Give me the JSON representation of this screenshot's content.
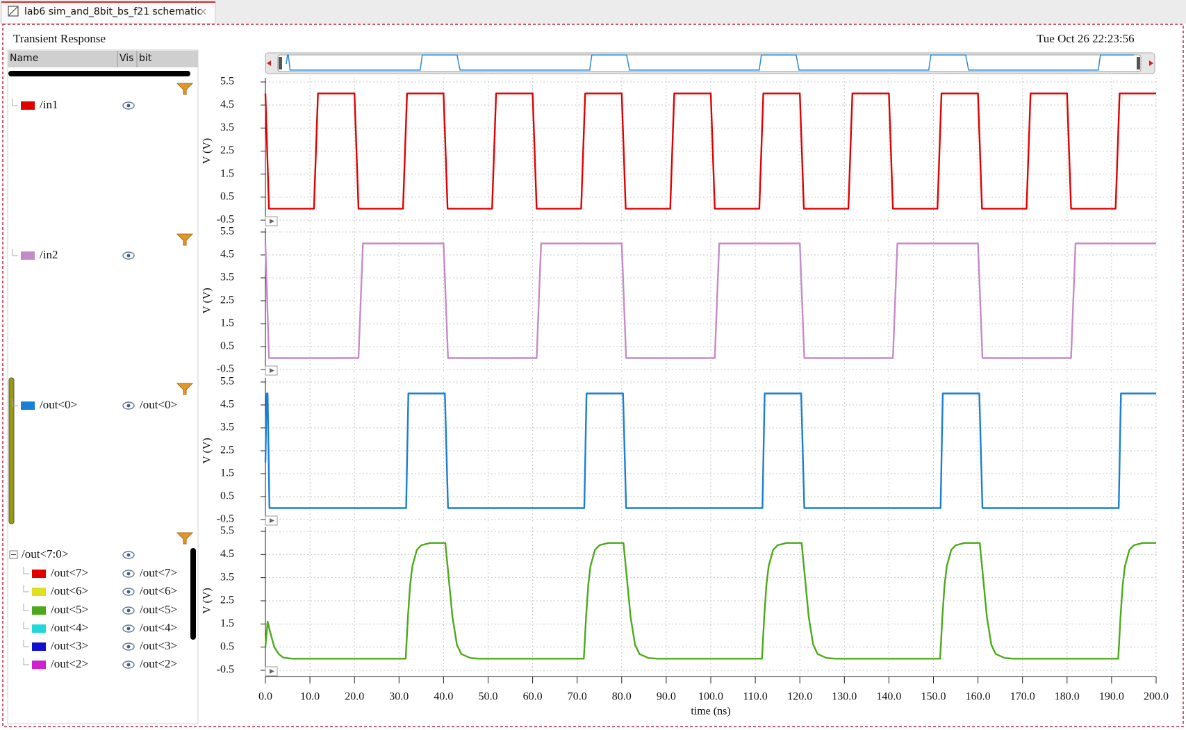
{
  "tab": {
    "title": "lab6 sim_and_8bit_bs_f21 schematic"
  },
  "window": {
    "title": "Transient Response",
    "timestamp": "Tue Oct 26 22:23:56"
  },
  "signal_panel": {
    "columns": [
      "Name",
      "Vis",
      "bit"
    ],
    "group": {
      "name": "/out<7:0>",
      "children": [
        {
          "name": "/out<7>",
          "bit": "/out<7>",
          "color": "#e00000"
        },
        {
          "name": "/out<6>",
          "bit": "/out<6>",
          "color": "#e0e020"
        },
        {
          "name": "/out<4>",
          "bit": "/out<4>",
          "color": "#20d8d8"
        },
        {
          "name": "/out<3>",
          "bit": "/out<3>",
          "color": "#1010d0"
        },
        {
          "name": "/out<2>",
          "bit": "/out<2>",
          "color": "#d020d0"
        }
      ]
    }
  },
  "chart_data": [
    {
      "type": "line",
      "ylabel": "V (V)",
      "xlim": [
        0,
        200
      ],
      "ylim": [
        -0.5,
        5.5
      ],
      "yticks": [
        -0.5,
        0.5,
        1.5,
        2.5,
        3.5,
        4.5,
        5.5
      ],
      "grid": true,
      "x": [
        0,
        0.8,
        10.9,
        11.8,
        20,
        20.9,
        30.9,
        31.8,
        40,
        40.9,
        50.9,
        51.8,
        60,
        60.9,
        70.9,
        71.8,
        80,
        80.9,
        90.9,
        91.8,
        100,
        100.9,
        110.9,
        111.8,
        120,
        120.9,
        130.9,
        131.8,
        140,
        140.9,
        150.9,
        151.8,
        160,
        160.9,
        170.9,
        171.8,
        180,
        180.9,
        190.9,
        191.8,
        200
      ],
      "series": [
        {
          "name": "/in1",
          "color": "#e00000",
          "values": [
            5,
            0,
            0,
            5,
            5,
            0,
            0,
            5,
            5,
            0,
            0,
            5,
            5,
            0,
            0,
            5,
            5,
            0,
            0,
            5,
            5,
            0,
            0,
            5,
            5,
            0,
            0,
            5,
            5,
            0,
            0,
            5,
            5,
            0,
            0,
            5,
            5,
            0,
            0,
            5,
            5
          ]
        }
      ]
    },
    {
      "type": "line",
      "ylabel": "V (V)",
      "xlim": [
        0,
        200
      ],
      "ylim": [
        -0.5,
        5.5
      ],
      "yticks": [
        -0.5,
        0.5,
        1.5,
        2.5,
        3.5,
        4.5,
        5.5
      ],
      "grid": true,
      "x": [
        0,
        0.8,
        20.9,
        21.9,
        40,
        41,
        60.9,
        61.9,
        80,
        81,
        100.9,
        101.9,
        120,
        121,
        140.9,
        141.9,
        160,
        161,
        180.9,
        181.9,
        200
      ],
      "series": [
        {
          "name": "/in2",
          "color": "#c58bc8",
          "values": [
            5,
            0,
            0,
            5,
            5,
            0,
            0,
            5,
            5,
            0,
            0,
            5,
            5,
            0,
            0,
            5,
            5,
            0,
            0,
            5,
            5
          ]
        }
      ]
    },
    {
      "type": "line",
      "ylabel": "V (V)",
      "xlim": [
        0,
        200
      ],
      "ylim": [
        -0.5,
        5.5
      ],
      "yticks": [
        -0.5,
        0.5,
        1.5,
        2.5,
        3.5,
        4.5,
        5.5
      ],
      "grid": true,
      "x": [
        0,
        0.3,
        0.5,
        0.9,
        31.6,
        32.1,
        40.3,
        41,
        71.6,
        72.1,
        80.3,
        81,
        111.6,
        112.1,
        120.3,
        121,
        151.6,
        152.1,
        160.3,
        161,
        191.6,
        192.1,
        200
      ],
      "series": [
        {
          "name": "/out<0>",
          "bit": "/out<0>",
          "color": "#1a7fd4",
          "values": [
            2,
            5,
            5,
            0,
            0,
            5,
            5,
            0,
            0,
            5,
            5,
            0,
            0,
            5,
            5,
            0,
            0,
            5,
            5,
            0,
            0,
            5,
            5
          ]
        }
      ]
    },
    {
      "type": "line",
      "ylabel": "V (V)",
      "xlabel": "time (ns)",
      "xlim": [
        0,
        200
      ],
      "ylim": [
        -0.5,
        5.5
      ],
      "yticks": [
        -0.5,
        0.5,
        1.5,
        2.5,
        3.5,
        4.5,
        5.5
      ],
      "grid": true,
      "xticks": [
        {
          "value": 0,
          "label": "0.0"
        },
        {
          "value": 10,
          "label": "10.0"
        },
        {
          "value": 20,
          "label": "20.0"
        },
        {
          "value": 30,
          "label": "30.0"
        },
        {
          "value": 40,
          "label": "40.0"
        },
        {
          "value": 50,
          "label": "50.0"
        },
        {
          "value": 60,
          "label": "60.0"
        },
        {
          "value": 70,
          "label": "70.0"
        },
        {
          "value": 80,
          "label": "80.0"
        },
        {
          "value": 90,
          "label": "90.0"
        },
        {
          "value": 100,
          "label": "100.0"
        },
        {
          "value": 110,
          "label": "110.0"
        },
        {
          "value": 120,
          "label": "120.0"
        },
        {
          "value": 130,
          "label": "130.0"
        },
        {
          "value": 140,
          "label": "140.0"
        },
        {
          "value": 150,
          "label": "150.0"
        },
        {
          "value": 160,
          "label": "160.0"
        },
        {
          "value": 170,
          "label": "170.0"
        },
        {
          "value": 180,
          "label": "180.0"
        },
        {
          "value": 190,
          "label": "190.0"
        },
        {
          "value": 200,
          "label": "200.0"
        }
      ],
      "x": [
        0,
        0.5,
        1,
        2,
        3,
        4,
        6,
        31.5,
        32,
        32.5,
        33,
        34,
        35,
        37,
        40.4,
        41,
        42,
        43,
        44,
        46,
        48,
        71.5,
        72,
        72.5,
        73,
        74,
        75,
        77,
        80.4,
        81,
        82,
        83,
        84,
        86,
        88,
        111.5,
        112,
        112.5,
        113,
        114,
        115,
        117,
        120.4,
        121,
        122,
        123,
        124,
        126,
        128,
        151.5,
        152,
        152.5,
        153,
        154,
        155,
        157,
        160.4,
        161,
        162,
        163,
        164,
        166,
        168,
        191.5,
        192,
        192.5,
        193,
        194,
        195,
        197,
        200
      ],
      "series": [
        {
          "name": "/out<5>",
          "bit": "/out<5>",
          "color": "#4caa1a",
          "values": [
            0.5,
            1.6,
            1.2,
            0.5,
            0.2,
            0.05,
            0,
            0,
            1.8,
            3.2,
            4,
            4.7,
            4.9,
            5,
            5,
            3.8,
            1.8,
            0.6,
            0.2,
            0.03,
            0,
            0,
            1.8,
            3.2,
            4,
            4.7,
            4.9,
            5,
            5,
            3.8,
            1.8,
            0.6,
            0.2,
            0.03,
            0,
            0,
            1.8,
            3.2,
            4,
            4.7,
            4.9,
            5,
            5,
            3.8,
            1.8,
            0.6,
            0.2,
            0.03,
            0,
            0,
            1.8,
            3.2,
            4,
            4.7,
            4.9,
            5,
            5,
            3.8,
            1.8,
            0.6,
            0.2,
            0.03,
            0,
            0,
            1.8,
            3.2,
            4,
            4.7,
            4.9,
            5,
            5
          ]
        }
      ]
    }
  ]
}
